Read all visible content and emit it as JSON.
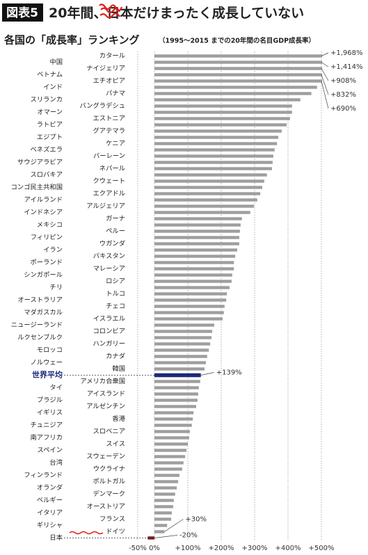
{
  "badge": "図表5",
  "title_parts": [
    "20年間、",
    "日本",
    "だけまったく成長していない"
  ],
  "chart_data": {
    "type": "barh",
    "title": "各国の「成長率」ランキング",
    "subtitle": "（1995～2015 までの20年間の名目GDP成長率）",
    "categories": [
      "カタール",
      "中国",
      "ナイジェリア",
      "ベトナム",
      "エチオピア",
      "インド",
      "パナマ",
      "スリランカ",
      "バングラデシュ",
      "オマーン",
      "エストニア",
      "ラトビア",
      "グアテマラ",
      "エジプト",
      "ケニア",
      "ベネズエラ",
      "バーレーン",
      "サウジアラビア",
      "ネパール",
      "スロバキア",
      "クウェート",
      "コンゴ民主共和国",
      "エクアドル",
      "アイルランド",
      "アルジェリア",
      "インドネシア",
      "ガーナ",
      "メキシコ",
      "ペルー",
      "フィリピン",
      "ウガンダ",
      "イラン",
      "パキスタン",
      "ポーランド",
      "マレーシア",
      "シンガポール",
      "ロシア",
      "チリ",
      "トルコ",
      "オーストラリア",
      "チェコ",
      "マダガスカル",
      "イスラエル",
      "ニュージーランド",
      "コロンビア",
      "ルクセンブルク",
      "ハンガリー",
      "モロッコ",
      "カナダ",
      "ノルウェー",
      "韓国",
      "世界平均",
      "アメリカ合衆国",
      "タイ",
      "アイスランド",
      "ブラジル",
      "アルゼンチン",
      "イギリス",
      "香港",
      "チュニジア",
      "スロベニア",
      "南アフリカ",
      "スイス",
      "スペイン",
      "スウェーデン",
      "台湾",
      "ウクライナ",
      "フィンランド",
      "ポルトガル",
      "オランダ",
      "デンマーク",
      "ベルギー",
      "オーストリア",
      "イタリア",
      "フランス",
      "ギリシャ",
      "ドイツ",
      "日本"
    ],
    "values": [
      1968,
      1414,
      908,
      832,
      690,
      487,
      470,
      437,
      412,
      412,
      406,
      396,
      381,
      371,
      367,
      360,
      356,
      354,
      352,
      337,
      329,
      323,
      317,
      308,
      298,
      287,
      262,
      258,
      256,
      254,
      254,
      248,
      242,
      238,
      238,
      233,
      231,
      225,
      217,
      215,
      210,
      208,
      204,
      179,
      173,
      171,
      167,
      163,
      158,
      154,
      150,
      139,
      137,
      133,
      131,
      129,
      125,
      117,
      115,
      112,
      106,
      104,
      100,
      96,
      92,
      87,
      83,
      75,
      71,
      67,
      62,
      58,
      56,
      52,
      50,
      38,
      30,
      -20
    ],
    "value_labels": [
      "+1,968%",
      "+1,414%",
      "+908%",
      "+832%",
      "+690%",
      null,
      null,
      null,
      null,
      null,
      null,
      null,
      null,
      null,
      null,
      null,
      null,
      null,
      null,
      null,
      null,
      null,
      null,
      null,
      null,
      null,
      null,
      null,
      null,
      null,
      null,
      null,
      null,
      null,
      null,
      null,
      null,
      null,
      null,
      null,
      null,
      null,
      null,
      null,
      null,
      null,
      null,
      null,
      null,
      null,
      null,
      "+139%",
      null,
      null,
      null,
      null,
      null,
      null,
      null,
      null,
      null,
      null,
      null,
      null,
      null,
      null,
      null,
      null,
      null,
      null,
      null,
      null,
      null,
      null,
      null,
      null,
      "+30%",
      "-20%"
    ],
    "colors": [
      "#9e9e9e",
      "#9e9e9e",
      "#9e9e9e",
      "#9e9e9e",
      "#9e9e9e",
      "#9e9e9e",
      "#9e9e9e",
      "#9e9e9e",
      "#9e9e9e",
      "#9e9e9e",
      "#9e9e9e",
      "#9e9e9e",
      "#9e9e9e",
      "#9e9e9e",
      "#9e9e9e",
      "#9e9e9e",
      "#9e9e9e",
      "#9e9e9e",
      "#9e9e9e",
      "#9e9e9e",
      "#9e9e9e",
      "#9e9e9e",
      "#9e9e9e",
      "#9e9e9e",
      "#9e9e9e",
      "#9e9e9e",
      "#9e9e9e",
      "#9e9e9e",
      "#9e9e9e",
      "#9e9e9e",
      "#9e9e9e",
      "#9e9e9e",
      "#9e9e9e",
      "#9e9e9e",
      "#9e9e9e",
      "#9e9e9e",
      "#9e9e9e",
      "#9e9e9e",
      "#9e9e9e",
      "#9e9e9e",
      "#9e9e9e",
      "#9e9e9e",
      "#9e9e9e",
      "#9e9e9e",
      "#9e9e9e",
      "#9e9e9e",
      "#9e9e9e",
      "#9e9e9e",
      "#9e9e9e",
      "#9e9e9e",
      "#9e9e9e",
      "#1b2a7a",
      "#9e9e9e",
      "#9e9e9e",
      "#9e9e9e",
      "#9e9e9e",
      "#9e9e9e",
      "#9e9e9e",
      "#9e9e9e",
      "#9e9e9e",
      "#9e9e9e",
      "#9e9e9e",
      "#9e9e9e",
      "#9e9e9e",
      "#9e9e9e",
      "#9e9e9e",
      "#9e9e9e",
      "#9e9e9e",
      "#9e9e9e",
      "#9e9e9e",
      "#9e9e9e",
      "#9e9e9e",
      "#9e9e9e",
      "#9e9e9e",
      "#9e9e9e",
      "#9e9e9e",
      "#9e9e9e",
      "#7a1a1a"
    ],
    "xlim": [
      -50,
      500
    ],
    "xticks": [
      {
        "value": -50,
        "label": "-50%"
      },
      {
        "value": 0,
        "label": "0%"
      },
      {
        "value": 100,
        "label": "+100%"
      },
      {
        "value": 200,
        "label": "+200%"
      },
      {
        "value": 300,
        "label": "+300%"
      },
      {
        "value": 400,
        "label": "+400%"
      },
      {
        "value": 500,
        "label": "+500%"
      }
    ],
    "grid": true
  }
}
